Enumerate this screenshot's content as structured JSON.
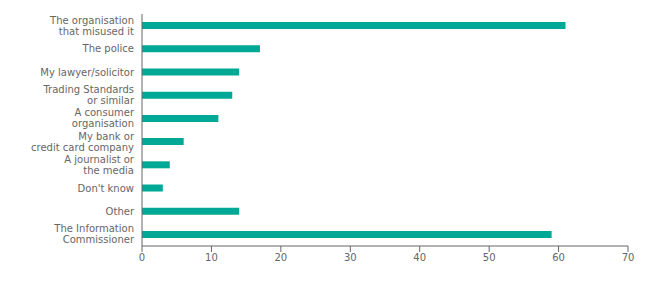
{
  "chart_data": {
    "type": "bar",
    "orientation": "horizontal",
    "categories": [
      "The organisation\nthat misused it",
      "The police",
      "My lawyer/solicitor",
      "Trading Standards\nor similar",
      "A consumer\norganisation",
      "My bank or\ncredit card company",
      "A journalist or\nthe media",
      "Don't know",
      "Other",
      "The Information\nCommissioner"
    ],
    "values": [
      61,
      17,
      14,
      13,
      11,
      6,
      4,
      3,
      14,
      59
    ],
    "color": "#00A896",
    "xlim": [
      0,
      70
    ],
    "xticks": [
      0,
      10,
      20,
      30,
      40,
      50,
      60,
      70
    ],
    "grid": false
  }
}
